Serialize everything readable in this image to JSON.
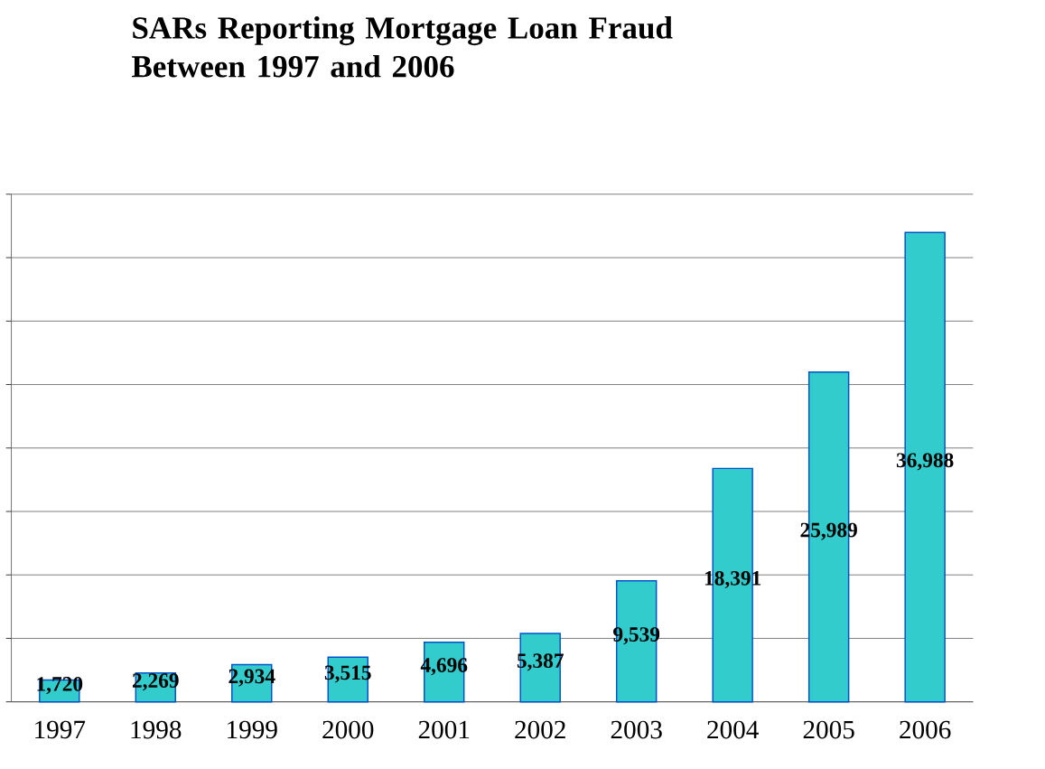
{
  "chart_data": {
    "type": "bar",
    "title": "SARs Reporting Mortgage Loan Fraud Between 1997 and 2006",
    "categories": [
      "1997",
      "1998",
      "1999",
      "2000",
      "2001",
      "2002",
      "2003",
      "2004",
      "2005",
      "2006"
    ],
    "values": [
      1720,
      2269,
      2934,
      3515,
      4696,
      5387,
      9539,
      18391,
      25989,
      36988
    ],
    "color": "#33cccc",
    "ylim": [
      0,
      40000
    ],
    "yticks": [
      {
        "value": 0,
        "label": null
      },
      {
        "value": 5000,
        "label": null
      },
      {
        "value": 10000,
        "label": null
      },
      {
        "value": 15000,
        "label": null
      },
      {
        "value": 20000,
        "label": null
      },
      {
        "value": 25000,
        "label": null
      },
      {
        "value": 30000,
        "label": null
      },
      {
        "value": 35000,
        "label": null
      },
      {
        "value": 40000,
        "label": null
      }
    ],
    "value_labels": [
      "1,720",
      "2,269",
      "2,934",
      "3,515",
      "4,696",
      "5,387",
      "9,539",
      "18,391",
      "25,989",
      "36,988"
    ],
    "grid": "y",
    "tick_labels": "x"
  }
}
